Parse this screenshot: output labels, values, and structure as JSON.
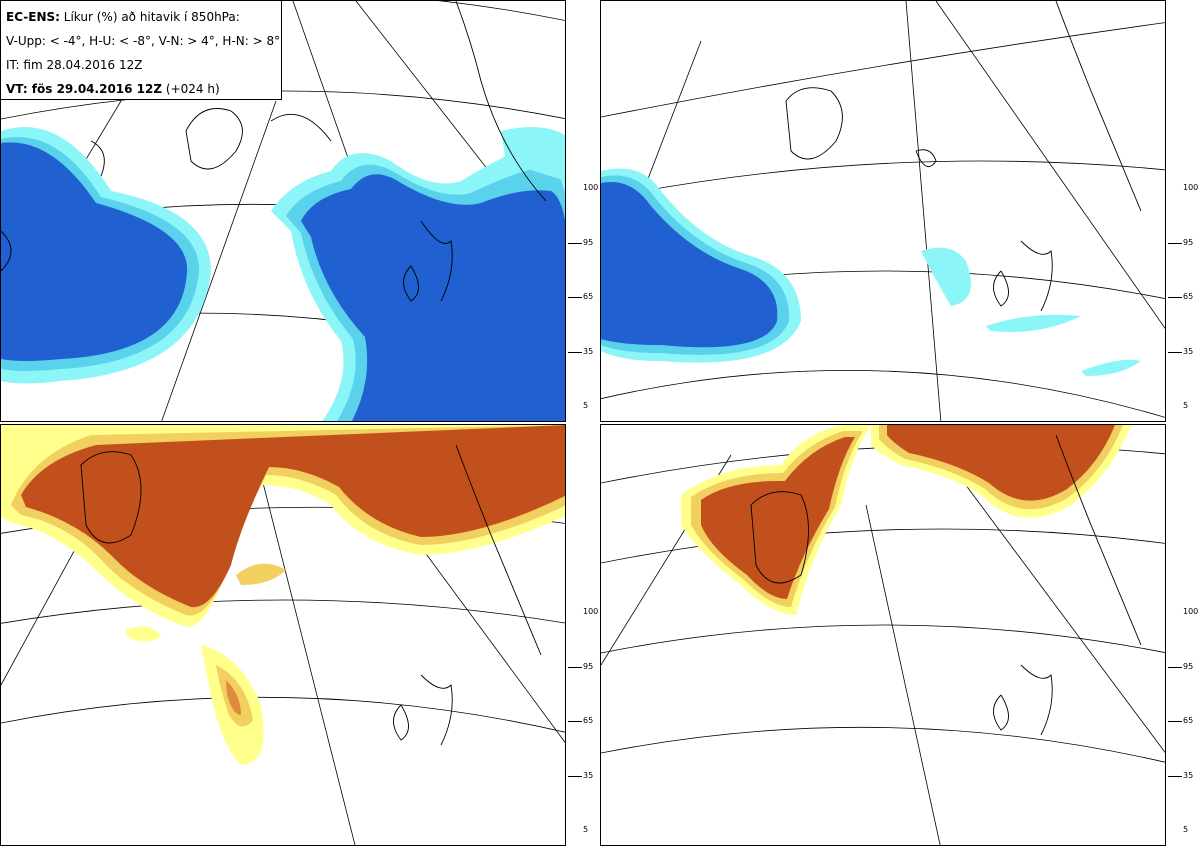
{
  "header": {
    "model_label": "EC-ENS:",
    "title_text": "Líkur (%) að hitavik í 850hPa:",
    "thresholds_text": "V-Upp: < -4°, H-U: < -8°, V-N: > 4°, H-N: > 8°",
    "initial_time_text": "IT: fim 28.04.2016 12Z",
    "valid_label": "VT: fös 29.04.2016 12Z",
    "lead_time_text": "(+024 h)"
  },
  "panels": [
    {
      "name": "V-Upp",
      "threshold": "< -4°",
      "palette": "blue"
    },
    {
      "name": "H-U",
      "threshold": "< -8°",
      "palette": "blue"
    },
    {
      "name": "V-N",
      "threshold": "> 4°",
      "palette": "orange"
    },
    {
      "name": "H-N",
      "threshold": "> 8°",
      "palette": "orange"
    }
  ],
  "legend": {
    "ticks": [
      "100",
      "95",
      "65",
      "35",
      "5"
    ],
    "blue_colors": [
      "#2060d0",
      "#3c8ce0",
      "#5ad2ec",
      "#8cf5f8"
    ],
    "orange_colors": [
      "#c2501c",
      "#de8c3c",
      "#f2d060",
      "#ffff8c"
    ]
  }
}
